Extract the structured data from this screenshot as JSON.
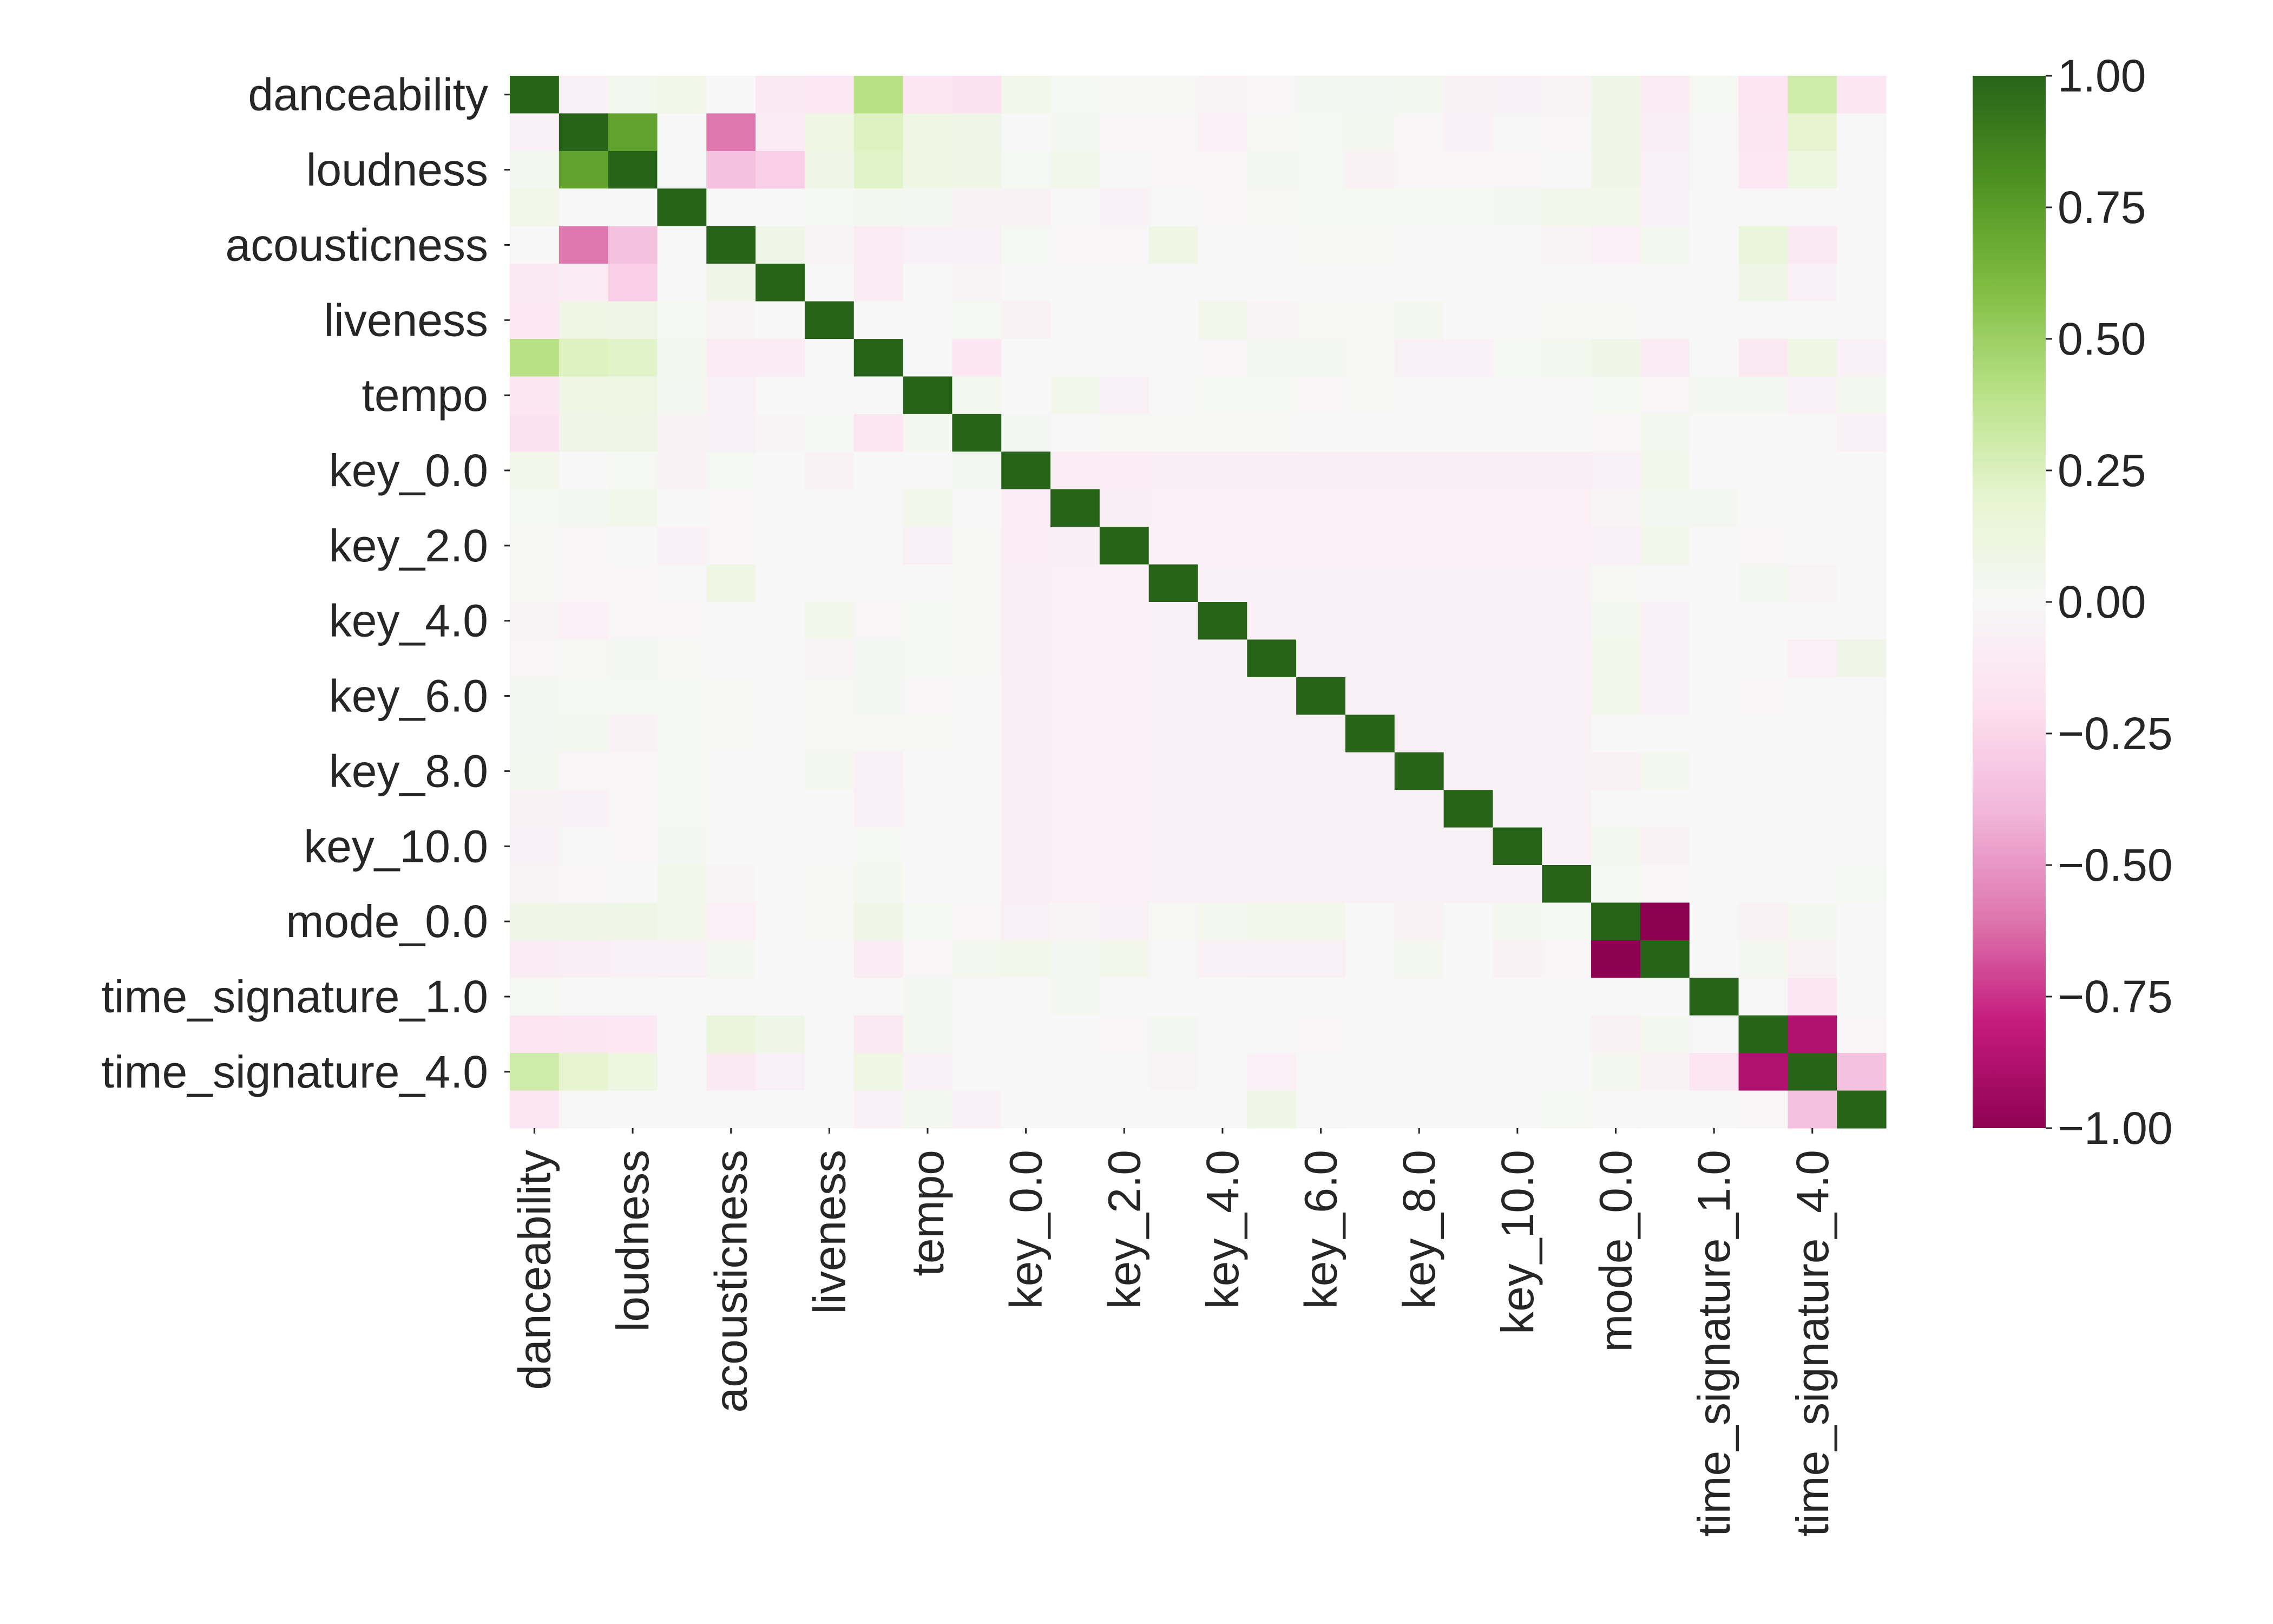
{
  "chart_data": {
    "type": "heatmap",
    "title": "",
    "xlabel": "",
    "ylabel": "",
    "grid": false,
    "legend": "colorbar-right",
    "row_labels": [
      "danceability",
      "",
      "loudness",
      "",
      "acousticness",
      "",
      "liveness",
      "",
      "tempo",
      "",
      "key_0.0",
      "",
      "key_2.0",
      "",
      "key_4.0",
      "",
      "key_6.0",
      "",
      "key_8.0",
      "",
      "key_10.0",
      "",
      "mode_0.0",
      "",
      "time_signature_1.0",
      "",
      "time_signature_4.0",
      ""
    ],
    "col_labels": [
      "danceability",
      "",
      "loudness",
      "",
      "acousticness",
      "",
      "liveness",
      "",
      "tempo",
      "",
      "key_0.0",
      "",
      "key_2.0",
      "",
      "key_4.0",
      "",
      "key_6.0",
      "",
      "key_8.0",
      "",
      "key_10.0",
      "",
      "mode_0.0",
      "",
      "time_signature_1.0",
      "",
      "time_signature_4.0",
      ""
    ],
    "values": [
      [
        1.0,
        -0.05,
        0.05,
        0.07,
        0.0,
        -0.12,
        -0.13,
        0.4,
        -0.15,
        -0.18,
        0.06,
        0.02,
        0.01,
        0.01,
        -0.03,
        -0.02,
        0.03,
        0.03,
        0.04,
        -0.04,
        -0.05,
        -0.03,
        0.08,
        -0.1,
        0.02,
        -0.16,
        0.3,
        -0.15
      ],
      [
        -0.05,
        1.0,
        0.72,
        0.0,
        -0.6,
        -0.1,
        0.1,
        0.24,
        0.1,
        0.08,
        0.0,
        0.03,
        -0.02,
        -0.02,
        -0.07,
        0.01,
        0.02,
        0.04,
        -0.02,
        -0.05,
        -0.01,
        -0.02,
        0.09,
        -0.08,
        -0.01,
        -0.15,
        0.2,
        -0.01
      ],
      [
        0.05,
        0.72,
        1.0,
        0.0,
        -0.35,
        -0.28,
        0.08,
        0.22,
        0.1,
        0.09,
        0.02,
        0.06,
        0.0,
        -0.02,
        -0.02,
        0.03,
        0.02,
        -0.04,
        -0.02,
        -0.02,
        -0.02,
        0.0,
        0.08,
        -0.06,
        -0.01,
        -0.13,
        0.12,
        0.0
      ],
      [
        0.07,
        0.0,
        0.0,
        1.0,
        0.0,
        0.0,
        0.02,
        0.04,
        0.03,
        -0.04,
        -0.04,
        0.0,
        -0.05,
        -0.01,
        -0.02,
        0.01,
        0.02,
        0.02,
        0.02,
        0.02,
        0.03,
        0.06,
        0.06,
        -0.06,
        0.0,
        0.0,
        0.0,
        0.0
      ],
      [
        0.0,
        -0.6,
        -0.35,
        0.0,
        1.0,
        0.08,
        -0.03,
        -0.1,
        -0.06,
        -0.06,
        0.02,
        -0.02,
        -0.02,
        0.1,
        0.0,
        -0.01,
        0.01,
        0.01,
        0.0,
        0.0,
        0.0,
        -0.03,
        -0.07,
        0.04,
        0.0,
        0.15,
        -0.12,
        0.0
      ],
      [
        -0.12,
        -0.1,
        -0.28,
        0.0,
        0.08,
        1.0,
        0.0,
        -0.1,
        0.0,
        -0.03,
        0.0,
        0.0,
        0.0,
        0.0,
        0.0,
        0.0,
        0.0,
        0.0,
        0.0,
        0.0,
        0.0,
        0.0,
        0.0,
        0.0,
        0.0,
        0.08,
        -0.06,
        0.0
      ],
      [
        -0.13,
        0.1,
        0.08,
        0.02,
        -0.03,
        0.0,
        1.0,
        0.0,
        0.0,
        0.02,
        -0.04,
        0.0,
        0.0,
        0.0,
        0.06,
        -0.03,
        0.01,
        0.01,
        0.04,
        0.0,
        0.0,
        0.01,
        0.01,
        0.0,
        0.0,
        0.0,
        0.0,
        0.0
      ],
      [
        0.4,
        0.24,
        0.22,
        0.04,
        -0.1,
        -0.1,
        0.0,
        1.0,
        0.0,
        -0.15,
        0.0,
        0.0,
        0.0,
        0.0,
        -0.02,
        0.03,
        0.03,
        0.01,
        -0.06,
        -0.05,
        0.02,
        0.05,
        0.08,
        -0.1,
        0.0,
        -0.12,
        0.1,
        -0.05
      ],
      [
        -0.15,
        0.1,
        0.1,
        0.03,
        -0.06,
        0.0,
        0.0,
        0.0,
        1.0,
        0.05,
        0.0,
        0.06,
        -0.06,
        0.0,
        0.02,
        0.02,
        -0.02,
        0.01,
        0.0,
        0.0,
        0.0,
        0.0,
        0.02,
        -0.02,
        0.03,
        0.03,
        -0.05,
        0.04
      ],
      [
        -0.18,
        0.08,
        0.09,
        -0.04,
        -0.06,
        -0.03,
        0.02,
        -0.15,
        0.05,
        1.0,
        0.03,
        0.0,
        0.01,
        0.01,
        0.01,
        0.01,
        0.0,
        0.0,
        0.0,
        0.0,
        0.0,
        0.0,
        -0.02,
        0.05,
        0.0,
        0.0,
        0.0,
        -0.05
      ],
      [
        0.06,
        0.0,
        0.02,
        -0.04,
        0.02,
        0.0,
        -0.04,
        0.0,
        0.0,
        0.03,
        1.0,
        -0.09,
        -0.09,
        -0.08,
        -0.08,
        -0.08,
        -0.08,
        -0.08,
        -0.08,
        -0.08,
        -0.08,
        -0.08,
        -0.06,
        0.06,
        0.0,
        0.0,
        0.0,
        0.0
      ],
      [
        0.02,
        0.03,
        0.06,
        0.0,
        -0.02,
        0.0,
        0.0,
        0.0,
        0.06,
        0.0,
        -0.09,
        1.0,
        -0.08,
        -0.07,
        -0.07,
        -0.07,
        -0.07,
        -0.07,
        -0.07,
        -0.07,
        -0.07,
        -0.07,
        -0.03,
        0.03,
        0.03,
        0.0,
        0.0,
        0.0
      ],
      [
        0.01,
        -0.02,
        0.0,
        -0.05,
        -0.02,
        0.0,
        0.0,
        0.0,
        -0.06,
        0.01,
        -0.09,
        -0.08,
        1.0,
        -0.07,
        -0.07,
        -0.07,
        -0.07,
        -0.07,
        -0.07,
        -0.07,
        -0.07,
        -0.07,
        -0.06,
        0.06,
        0.0,
        -0.02,
        0.0,
        0.0
      ],
      [
        0.01,
        -0.02,
        -0.02,
        -0.01,
        0.1,
        0.0,
        0.0,
        0.0,
        0.0,
        0.01,
        -0.08,
        -0.07,
        -0.07,
        1.0,
        -0.06,
        -0.06,
        -0.06,
        -0.06,
        -0.06,
        -0.06,
        -0.06,
        -0.06,
        0.01,
        -0.01,
        0.0,
        0.03,
        -0.03,
        0.0
      ],
      [
        -0.03,
        -0.07,
        -0.02,
        -0.02,
        0.0,
        0.0,
        0.06,
        -0.02,
        0.02,
        0.01,
        -0.08,
        -0.07,
        -0.07,
        -0.06,
        1.0,
        -0.06,
        -0.06,
        -0.06,
        -0.06,
        -0.06,
        -0.06,
        -0.06,
        0.05,
        -0.05,
        0.0,
        0.0,
        0.0,
        0.0
      ],
      [
        -0.02,
        0.01,
        0.03,
        0.01,
        -0.01,
        0.0,
        -0.03,
        0.03,
        0.02,
        0.01,
        -0.08,
        -0.07,
        -0.07,
        -0.06,
        -0.06,
        1.0,
        -0.06,
        -0.06,
        -0.06,
        -0.06,
        -0.06,
        -0.06,
        0.06,
        -0.06,
        0.0,
        0.0,
        -0.07,
        0.08
      ],
      [
        0.03,
        0.02,
        0.02,
        0.02,
        0.01,
        0.0,
        0.01,
        0.03,
        -0.02,
        0.0,
        -0.08,
        -0.07,
        -0.07,
        -0.06,
        -0.06,
        -0.06,
        1.0,
        -0.06,
        -0.06,
        -0.06,
        -0.06,
        -0.06,
        0.06,
        -0.06,
        0.0,
        -0.02,
        0.0,
        -0.01
      ],
      [
        0.03,
        0.04,
        -0.04,
        0.02,
        0.01,
        0.0,
        0.01,
        0.01,
        0.01,
        0.0,
        -0.08,
        -0.07,
        -0.07,
        -0.06,
        -0.06,
        -0.06,
        -0.06,
        1.0,
        -0.06,
        -0.06,
        -0.06,
        -0.06,
        0.0,
        0.0,
        0.0,
        0.0,
        0.0,
        0.0
      ],
      [
        0.04,
        -0.02,
        -0.02,
        0.02,
        0.0,
        0.0,
        0.04,
        -0.06,
        0.0,
        0.0,
        -0.08,
        -0.07,
        -0.07,
        -0.06,
        -0.06,
        -0.06,
        -0.06,
        -0.06,
        1.0,
        -0.06,
        -0.06,
        -0.06,
        -0.04,
        0.04,
        0.0,
        0.0,
        0.0,
        0.0
      ],
      [
        -0.04,
        -0.05,
        -0.02,
        0.02,
        0.0,
        0.0,
        0.0,
        -0.05,
        0.0,
        0.0,
        -0.08,
        -0.07,
        -0.07,
        -0.06,
        -0.06,
        -0.06,
        -0.06,
        -0.06,
        -0.06,
        1.0,
        -0.06,
        -0.06,
        0.0,
        0.0,
        0.0,
        0.0,
        0.0,
        0.0
      ],
      [
        -0.05,
        -0.01,
        -0.02,
        0.03,
        0.0,
        0.0,
        0.0,
        0.02,
        0.0,
        0.0,
        -0.08,
        -0.07,
        -0.07,
        -0.06,
        -0.06,
        -0.06,
        -0.06,
        -0.06,
        -0.06,
        -0.06,
        1.0,
        -0.06,
        0.04,
        -0.04,
        0.0,
        0.0,
        0.0,
        0.0
      ],
      [
        -0.03,
        -0.02,
        0.0,
        0.06,
        -0.03,
        0.0,
        0.01,
        0.05,
        0.0,
        0.0,
        -0.08,
        -0.07,
        -0.07,
        -0.06,
        -0.06,
        -0.06,
        -0.06,
        -0.06,
        -0.06,
        -0.06,
        -0.06,
        1.0,
        0.02,
        -0.02,
        0.0,
        0.0,
        0.0,
        0.02
      ],
      [
        0.08,
        0.09,
        0.08,
        0.06,
        -0.07,
        0.0,
        0.01,
        0.08,
        0.02,
        -0.02,
        -0.06,
        -0.03,
        -0.06,
        0.01,
        0.05,
        0.06,
        0.06,
        0.0,
        -0.04,
        0.0,
        0.04,
        0.02,
        1.0,
        -1.0,
        0.0,
        -0.04,
        0.04,
        0.0
      ],
      [
        -0.1,
        -0.08,
        -0.06,
        -0.06,
        0.04,
        0.0,
        0.0,
        -0.1,
        -0.02,
        0.05,
        0.06,
        0.03,
        0.06,
        -0.01,
        -0.05,
        -0.06,
        -0.06,
        0.0,
        0.04,
        0.0,
        -0.04,
        -0.02,
        -1.0,
        1.0,
        0.0,
        0.04,
        -0.04,
        0.0
      ],
      [
        0.02,
        -0.01,
        -0.01,
        0.0,
        0.0,
        0.0,
        0.0,
        0.0,
        0.03,
        0.0,
        0.0,
        0.03,
        0.0,
        0.0,
        0.0,
        0.0,
        0.0,
        0.0,
        0.0,
        0.0,
        0.0,
        0.0,
        0.0,
        0.0,
        1.0,
        -0.01,
        -0.15,
        0.0
      ],
      [
        -0.16,
        -0.15,
        -0.13,
        0.0,
        0.15,
        0.08,
        0.0,
        -0.12,
        0.03,
        0.0,
        0.0,
        0.0,
        -0.02,
        0.03,
        0.0,
        0.0,
        -0.02,
        0.0,
        0.0,
        0.0,
        0.0,
        0.0,
        -0.04,
        0.04,
        -0.01,
        1.0,
        -0.88,
        -0.02
      ],
      [
        0.3,
        0.2,
        0.12,
        0.0,
        -0.12,
        -0.06,
        0.0,
        0.1,
        -0.05,
        0.0,
        0.0,
        0.0,
        0.0,
        -0.03,
        0.0,
        -0.07,
        0.0,
        0.0,
        0.0,
        0.0,
        0.0,
        0.0,
        0.04,
        -0.04,
        -0.15,
        -0.88,
        1.0,
        -0.35
      ],
      [
        -0.15,
        -0.01,
        0.0,
        0.0,
        0.0,
        0.0,
        0.0,
        -0.05,
        0.04,
        -0.05,
        0.0,
        0.0,
        0.0,
        0.0,
        0.0,
        0.08,
        -0.01,
        0.0,
        0.0,
        0.0,
        0.0,
        0.02,
        0.0,
        0.0,
        0.0,
        -0.02,
        -0.35,
        1.0
      ]
    ],
    "vmin": -1.0,
    "vmax": 1.0,
    "colormap": "PiYG",
    "colorbar_ticks": [
      "1.00",
      "0.75",
      "0.50",
      "0.25",
      "0.00",
      "−0.25",
      "−0.50",
      "−0.75",
      "−1.00"
    ],
    "colorbar_tick_values": [
      1.0,
      0.75,
      0.5,
      0.25,
      0.0,
      -0.25,
      -0.5,
      -0.75,
      -1.0
    ]
  }
}
